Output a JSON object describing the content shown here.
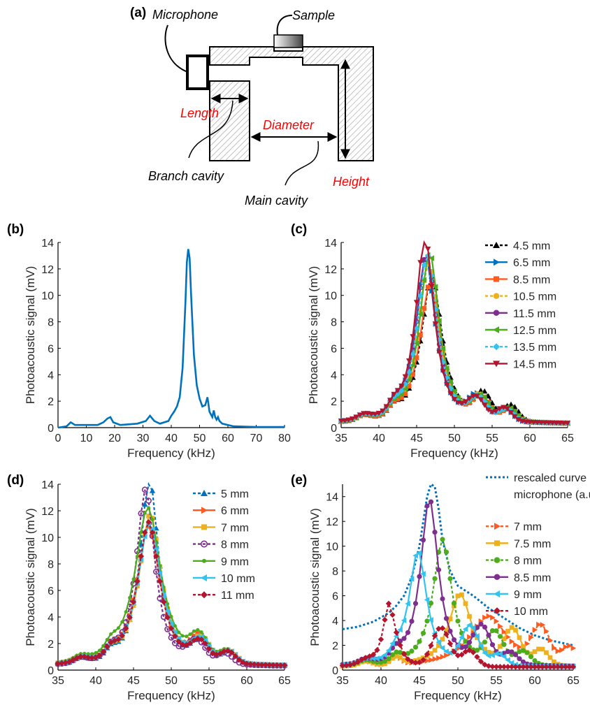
{
  "diagram": {
    "panel_label": "(a)",
    "labels": {
      "microphone": "Microphone",
      "sample": "Sample",
      "length": "Length",
      "diameter": "Diameter",
      "branch_cavity": "Branch cavity",
      "main_cavity": "Main cavity",
      "height": "Height"
    },
    "colors": {
      "red_label": "#ff0000",
      "hatch": "#9a9a9a",
      "outline": "#000000"
    }
  },
  "chart_data": [
    {
      "panel": "(b)",
      "type": "line",
      "xlabel": "Frequency (kHz)",
      "ylabel": "Photoacoustic signal (mV)",
      "xlim": [
        0,
        80
      ],
      "ylim": [
        0,
        14
      ],
      "xticks": [
        0,
        10,
        20,
        30,
        40,
        50,
        60,
        70,
        80
      ],
      "yticks": [
        0,
        2,
        4,
        6,
        8,
        10,
        12,
        14
      ],
      "legend": "none",
      "series": [
        {
          "color": "#0072bd",
          "marker": "none",
          "x": [
            0,
            3,
            4.5,
            6,
            10,
            14,
            16,
            17.5,
            18.5,
            19.5,
            22,
            28,
            31,
            32.5,
            34,
            36,
            39,
            40,
            41,
            42,
            43,
            44,
            45,
            45.5,
            46,
            46.5,
            47,
            48,
            49,
            50,
            51,
            52,
            52.8,
            53.5,
            54.5,
            55,
            55.5,
            56,
            56.5,
            57,
            58,
            62,
            70,
            80
          ],
          "y": [
            0,
            0.1,
            0.4,
            0.2,
            0.2,
            0.2,
            0.4,
            0.7,
            0.8,
            0.4,
            0.2,
            0.3,
            0.5,
            0.9,
            0.5,
            0.3,
            0.5,
            0.9,
            1.2,
            1.6,
            2.3,
            4.5,
            9.5,
            12.5,
            13.5,
            12.8,
            10,
            5.5,
            3.2,
            2.2,
            1.6,
            1.7,
            2.3,
            1.2,
            0.8,
            1.3,
            0.8,
            0.6,
            0.8,
            0.5,
            0.3,
            0.1,
            0.05,
            0.05
          ]
        }
      ]
    },
    {
      "panel": "(c)",
      "type": "line",
      "xlabel": "Frequency (kHz)",
      "ylabel": "Photoacoustic signal (mV)",
      "xlim": [
        35,
        65
      ],
      "ylim": [
        0,
        14
      ],
      "xticks": [
        35,
        40,
        45,
        50,
        55,
        60,
        65
      ],
      "yticks": [
        0,
        2,
        4,
        6,
        8,
        10,
        12,
        14
      ],
      "legend": "top-right",
      "series": [
        {
          "name": "4.5 mm",
          "color": "#000000",
          "marker": "triangle-up",
          "dash": "4 3",
          "peak_x": 47,
          "peak_y": 11.2,
          "width": 1.7,
          "bump1_y": 1.9,
          "bump2_y": 1.2
        },
        {
          "name": "6.5 mm",
          "color": "#0072bd",
          "marker": "triangle-right",
          "dash": "",
          "peak_x": 46.2,
          "peak_y": 12.6,
          "width": 1.6,
          "bump1_y": 1.7,
          "bump2_y": 0.9
        },
        {
          "name": "8.5 mm",
          "color": "#ff5a1f",
          "marker": "square",
          "dash": "",
          "peak_x": 46.8,
          "peak_y": 10.7,
          "width": 1.7,
          "bump1_y": 1.6,
          "bump2_y": 0.9
        },
        {
          "name": "10.5 mm",
          "color": "#edb120",
          "marker": "circle",
          "dash": "4 3",
          "peak_x": 46.6,
          "peak_y": 12.2,
          "width": 1.7,
          "bump1_y": 1.6,
          "bump2_y": 0.9
        },
        {
          "name": "11.5 mm",
          "color": "#7e2f8e",
          "marker": "circle",
          "dash": "",
          "peak_x": 46.3,
          "peak_y": 12.9,
          "width": 1.6,
          "bump1_y": 1.5,
          "bump2_y": 0.9
        },
        {
          "name": "12.5 mm",
          "color": "#4dab1e",
          "marker": "triangle-left",
          "dash": "",
          "peak_x": 46.7,
          "peak_y": 13.0,
          "width": 1.6,
          "bump1_y": 1.6,
          "bump2_y": 1.0
        },
        {
          "name": "13.5 mm",
          "color": "#33c3f0",
          "marker": "diamond",
          "dash": "4 3",
          "peak_x": 46.4,
          "peak_y": 12.8,
          "width": 1.6,
          "bump1_y": 1.5,
          "bump2_y": 0.9
        },
        {
          "name": "14.5 mm",
          "color": "#b3152e",
          "marker": "triangle-down",
          "dash": "",
          "peak_x": 46.1,
          "peak_y": 14.2,
          "width": 1.5,
          "bump1_y": 1.5,
          "bump2_y": 1.0
        }
      ]
    },
    {
      "panel": "(d)",
      "type": "line",
      "xlabel": "Frequency (kHz)",
      "ylabel": "Photoacoustic signal (mV)",
      "xlim": [
        35,
        65
      ],
      "ylim": [
        0,
        14
      ],
      "xticks": [
        35,
        40,
        45,
        50,
        55,
        60,
        65
      ],
      "yticks": [
        0,
        2,
        4,
        6,
        8,
        10,
        12,
        14
      ],
      "legend": "top-right",
      "series": [
        {
          "name": "5 mm",
          "color": "#0072bd",
          "marker": "triangle-up",
          "dash": "4 3",
          "peak_x": 47.1,
          "peak_y": 14.2,
          "width": 1.5,
          "bump1_y": 1.6,
          "bump2_y": 0.9
        },
        {
          "name": "6 mm",
          "color": "#ff5a1f",
          "marker": "triangle-right",
          "dash": "",
          "peak_x": 47.0,
          "peak_y": 10.6,
          "width": 1.9,
          "bump1_y": 1.8,
          "bump2_y": 0.9
        },
        {
          "name": "7 mm",
          "color": "#edb120",
          "marker": "square",
          "dash": "",
          "peak_x": 47.2,
          "peak_y": 11.5,
          "width": 1.8,
          "bump1_y": 1.6,
          "bump2_y": 0.9
        },
        {
          "name": "8 mm",
          "color": "#7e2f8e",
          "marker": "circle-open",
          "dash": "4 3",
          "peak_x": 46.6,
          "peak_y": 13.4,
          "width": 1.5,
          "bump1_y": 1.5,
          "bump2_y": 0.8
        },
        {
          "name": "9 mm",
          "color": "#4dab1e",
          "marker": "dot",
          "dash": "",
          "peak_x": 46.9,
          "peak_y": 12.0,
          "width": 2.1,
          "bump1_y": 1.7,
          "bump2_y": 0.9
        },
        {
          "name": "10 mm",
          "color": "#33c3f0",
          "marker": "triangle-left",
          "dash": "",
          "peak_x": 47.1,
          "peak_y": 10.8,
          "width": 1.9,
          "bump1_y": 1.5,
          "bump2_y": 0.9
        },
        {
          "name": "11 mm",
          "color": "#b3152e",
          "marker": "diamond",
          "dash": "4 3",
          "peak_x": 47.0,
          "peak_y": 10.9,
          "width": 1.8,
          "bump1_y": 1.4,
          "bump2_y": 0.9
        }
      ]
    },
    {
      "panel": "(e)",
      "type": "line",
      "xlabel": "Frequency (kHz)",
      "ylabel": "Photoacoustic signal (mV)",
      "xlim": [
        35,
        65
      ],
      "ylim": [
        0,
        15
      ],
      "xticks": [
        35,
        40,
        45,
        50,
        55,
        60,
        65
      ],
      "yticks": [
        0,
        2,
        4,
        6,
        8,
        10,
        12,
        14
      ],
      "legend": "top-right",
      "reference": {
        "name": "rescaled curve of microphone (a.u.)",
        "color": "#0072bd",
        "dash": "3 3",
        "x": [
          35,
          37,
          39,
          41,
          42,
          43,
          44,
          45,
          45.5,
          46,
          46.5,
          47,
          47.5,
          48,
          49,
          50,
          52,
          54,
          56,
          58,
          60,
          62,
          65
        ],
        "y": [
          3.3,
          3.5,
          3.9,
          4.6,
          5.2,
          6.0,
          7.5,
          10,
          12,
          14,
          15,
          14.8,
          13,
          10.5,
          8,
          6.8,
          6.0,
          5.0,
          4.2,
          3.4,
          2.8,
          2.4,
          2.0
        ]
      },
      "series": [
        {
          "name": "7 mm",
          "color": "#ff5a1f",
          "marker": "triangle-right",
          "dash": "4 3",
          "peak_x": 54.0,
          "peak_y": 4.1,
          "width": 3.0,
          "bump1_y": 2.8,
          "bump2_y": 1.4
        },
        {
          "name": "7.5 mm",
          "color": "#edb120",
          "marker": "square",
          "dash": "",
          "peak_x": 50.3,
          "peak_y": 5.9,
          "width": 1.8,
          "bump1_y": 2.8,
          "bump2_y": 1.3
        },
        {
          "name": "8 mm",
          "color": "#4dab1e",
          "marker": "circle",
          "dash": "4 3",
          "peak_x": 48.0,
          "peak_y": 10.3,
          "width": 1.5,
          "bump1_y": 2.5,
          "bump2_y": 1.1
        },
        {
          "name": "8.5 mm",
          "color": "#7e2f8e",
          "marker": "circle",
          "dash": "",
          "peak_x": 46.3,
          "peak_y": 13.6,
          "width": 1.4,
          "bump1_y": 2.9,
          "bump2_y": 1.0
        },
        {
          "name": "9 mm",
          "color": "#33c3f0",
          "marker": "triangle-left",
          "dash": "",
          "peak_x": 44.8,
          "peak_y": 9.4,
          "width": 1.4,
          "bump1_y": 3.0,
          "bump2_y": 0.9
        },
        {
          "name": "10 mm",
          "color": "#b3152e",
          "marker": "diamond",
          "dash": "4 3",
          "peak_x": 41.0,
          "peak_y": 4.9,
          "width": 0.9,
          "bump1_y": 3.1,
          "bump2_y": 1.3
        }
      ]
    }
  ]
}
